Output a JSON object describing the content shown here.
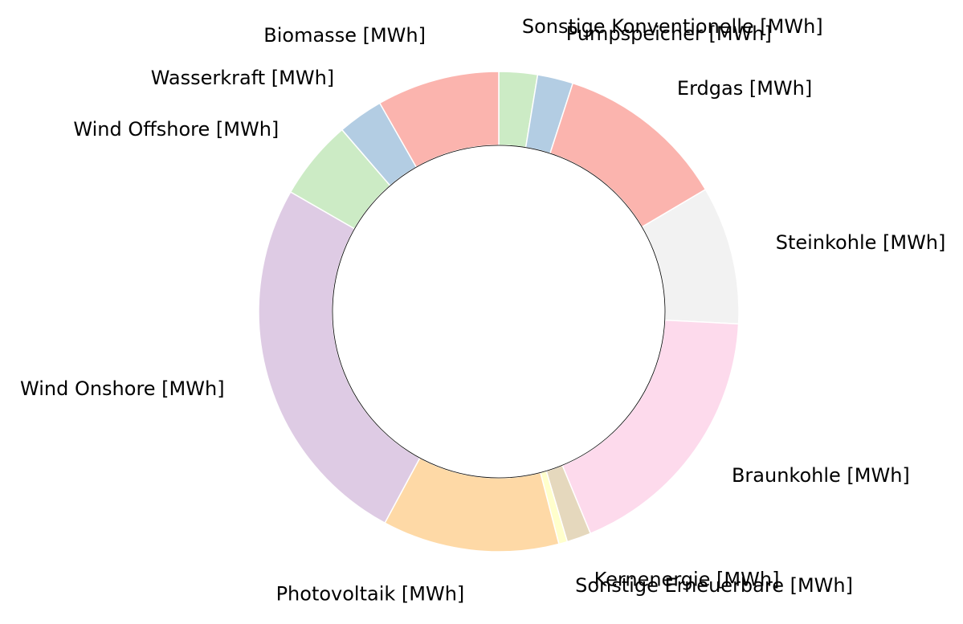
{
  "chart_data": {
    "type": "pie",
    "donut": true,
    "start_angle_deg": 90,
    "direction": "clockwise",
    "slices": [
      {
        "label": "Sonstige Konventionelle [MWh]",
        "value": 2.7,
        "color": "#ccebc5"
      },
      {
        "label": "Pumpspeicher [MWh]",
        "value": 2.5,
        "color": "#b3cde3"
      },
      {
        "label": "Erdgas [MWh]",
        "value": 12.0,
        "color": "#fbb4ae"
      },
      {
        "label": "Steinkohle [MWh]",
        "value": 9.7,
        "color": "#f2f2f2"
      },
      {
        "label": "Braunkohle [MWh]",
        "value": 18.7,
        "color": "#fddaec"
      },
      {
        "label": "Kernenergie [MWh]",
        "value": 1.7,
        "color": "#e5d8bd"
      },
      {
        "label": "Sonstige Erneuerbare [MWh]",
        "value": 0.6,
        "color": "#ffffcc"
      },
      {
        "label": "Photovoltaik [MWh]",
        "value": 12.4,
        "color": "#fed9a6"
      },
      {
        "label": "Wind Onshore [MWh]",
        "value": 26.5,
        "color": "#decbe4"
      },
      {
        "label": "Wind Offshore [MWh]",
        "value": 5.6,
        "color": "#ccebc5"
      },
      {
        "label": "Wasserkraft [MWh]",
        "value": 3.2,
        "color": "#b3cde3"
      },
      {
        "label": "Biomasse [MWh]",
        "value": 8.6,
        "color": "#fbb4ae"
      }
    ]
  }
}
